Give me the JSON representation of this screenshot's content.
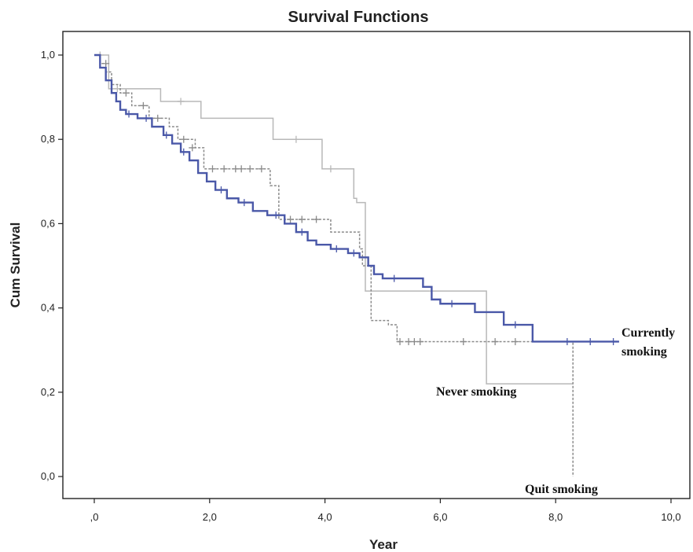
{
  "chart_data": {
    "type": "line",
    "title": "Survival Functions",
    "xlabel": "Year",
    "ylabel": "Cum Survival",
    "xlim": [
      0,
      10
    ],
    "ylim": [
      0,
      1
    ],
    "x_ticks": [
      ",0",
      "2,0",
      "4,0",
      "6,0",
      "8,0",
      "10,0"
    ],
    "y_ticks": [
      "0,0",
      "0,2",
      "0,4",
      "0,6",
      "0,8",
      "1,0"
    ],
    "grid": false,
    "legend": "none",
    "annotations": {
      "currently_line1": "Currently",
      "currently_line2": "smoking",
      "never": "Never smoking",
      "quit": "Quit smoking"
    },
    "series": [
      {
        "id": "never",
        "color": "#b8b8b8",
        "style": "solid",
        "x": [
          0,
          0.25,
          1.15,
          1.85,
          3.1,
          3.95,
          4.5,
          4.55,
          4.7,
          6.8,
          8.3
        ],
        "y": [
          1.0,
          0.92,
          0.89,
          0.85,
          0.8,
          0.73,
          0.66,
          0.65,
          0.44,
          0.22,
          0.22
        ],
        "censor_x": [
          0.1,
          0.4,
          1.5,
          3.5,
          4.1
        ],
        "censor_y": [
          1.0,
          0.92,
          0.89,
          0.8,
          0.73
        ]
      },
      {
        "id": "quit",
        "color": "#8a8a8a",
        "style": "dashed",
        "x": [
          0,
          0.1,
          0.2,
          0.3,
          0.45,
          0.65,
          0.95,
          1.3,
          1.45,
          1.75,
          1.9,
          2.9,
          3.05,
          3.2,
          3.9,
          4.1,
          4.6,
          4.65,
          4.8,
          5.1,
          5.25,
          8.3,
          8.3
        ],
        "y": [
          1.0,
          0.98,
          0.96,
          0.93,
          0.91,
          0.88,
          0.85,
          0.83,
          0.8,
          0.78,
          0.73,
          0.73,
          0.69,
          0.61,
          0.61,
          0.58,
          0.54,
          0.5,
          0.37,
          0.36,
          0.32,
          0.32,
          0.0
        ],
        "censor_x": [
          0.2,
          0.55,
          0.85,
          1.1,
          1.55,
          1.7,
          2.05,
          2.25,
          2.45,
          2.55,
          2.7,
          2.9,
          3.4,
          3.6,
          3.85,
          5.3,
          5.45,
          5.55,
          5.65,
          6.4,
          6.95,
          7.3
        ],
        "censor_y": [
          0.98,
          0.91,
          0.88,
          0.85,
          0.8,
          0.78,
          0.73,
          0.73,
          0.73,
          0.73,
          0.73,
          0.73,
          0.61,
          0.61,
          0.61,
          0.32,
          0.32,
          0.32,
          0.32,
          0.32,
          0.32,
          0.32
        ]
      },
      {
        "id": "currently",
        "color": "#4a58a8",
        "style": "solid",
        "x": [
          0,
          0.1,
          0.2,
          0.3,
          0.38,
          0.45,
          0.55,
          0.75,
          1.0,
          1.2,
          1.35,
          1.5,
          1.65,
          1.8,
          1.95,
          2.1,
          2.3,
          2.5,
          2.75,
          3.0,
          3.3,
          3.5,
          3.7,
          3.85,
          4.1,
          4.4,
          4.6,
          4.75,
          4.85,
          5.0,
          5.3,
          5.7,
          5.85,
          6.0,
          6.3,
          6.6,
          7.1,
          7.6,
          8.0,
          9.1
        ],
        "y": [
          1.0,
          0.97,
          0.94,
          0.91,
          0.89,
          0.87,
          0.86,
          0.85,
          0.83,
          0.81,
          0.79,
          0.77,
          0.75,
          0.72,
          0.7,
          0.68,
          0.66,
          0.65,
          0.63,
          0.62,
          0.6,
          0.58,
          0.56,
          0.55,
          0.54,
          0.53,
          0.52,
          0.5,
          0.48,
          0.47,
          0.47,
          0.45,
          0.42,
          0.41,
          0.41,
          0.39,
          0.36,
          0.32,
          0.32,
          0.32
        ],
        "censor_x": [
          0.6,
          0.9,
          1.25,
          1.55,
          2.2,
          2.6,
          3.15,
          3.6,
          4.2,
          4.5,
          5.2,
          6.2,
          7.3,
          8.2,
          8.6,
          9.0
        ],
        "censor_y": [
          0.86,
          0.85,
          0.81,
          0.77,
          0.68,
          0.65,
          0.62,
          0.58,
          0.54,
          0.53,
          0.47,
          0.41,
          0.36,
          0.32,
          0.32,
          0.32
        ]
      }
    ]
  }
}
